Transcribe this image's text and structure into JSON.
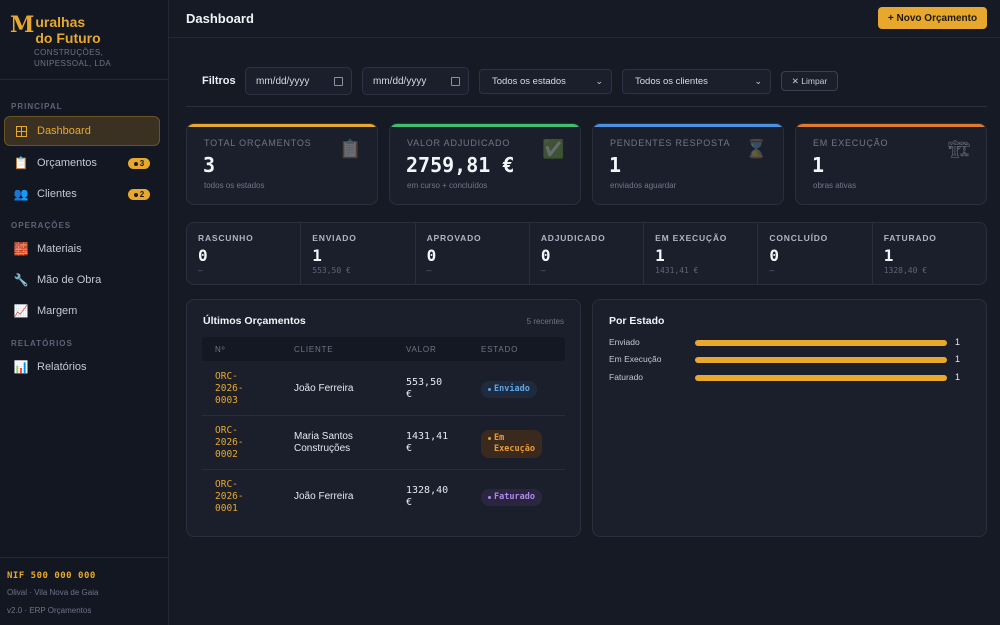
{
  "brand": {
    "initial": "M",
    "name_line1": "uralhas",
    "name_line2": "do Futuro",
    "sub_line1": "CONSTRUÇÕES,",
    "sub_line2": "UNIPESSOAL, LDA"
  },
  "sidebar": {
    "sections": {
      "principal": "PRINCIPAL",
      "operacoes": "OPERAÇÕES",
      "relatorios": "RELATÓRIOS"
    },
    "items": [
      {
        "label": "Dashboard",
        "icon": "grid-icon",
        "active": true
      },
      {
        "label": "Orçamentos",
        "icon": "clipboard-icon",
        "badge": "3"
      },
      {
        "label": "Clientes",
        "icon": "users-icon",
        "badge": "2"
      },
      {
        "label": "Materiais",
        "icon": "bricks-icon"
      },
      {
        "label": "Mão de Obra",
        "icon": "wrench-icon"
      },
      {
        "label": "Margem",
        "icon": "chart-up-icon"
      },
      {
        "label": "Relatórios",
        "icon": "bar-chart-icon"
      }
    ],
    "footer": {
      "nif": "NIF 500 000 000",
      "location": "Olival · Vila Nova de Gaia",
      "version": "v2.0 · ERP Orçamentos"
    }
  },
  "header": {
    "title": "Dashboard",
    "new_button": "+ Novo Orçamento"
  },
  "filters": {
    "label": "Filtros",
    "date_from_placeholder": "mm/dd/yyyy",
    "date_to_placeholder": "mm/dd/yyyy",
    "status_select": "Todos os estados",
    "client_select": "Todos os clientes",
    "clear_button": "✕ Limpar"
  },
  "kpis": [
    {
      "label": "TOTAL ORÇAMENTOS",
      "value": "3",
      "sub": "todos os estados",
      "color": "#e8a82e",
      "icon": "clipboard-icon"
    },
    {
      "label": "VALOR ADJUDICADO",
      "value": "2759,81 €",
      "sub": "em curso + concluídos",
      "color": "#3fbf6f",
      "icon": "check-box-icon"
    },
    {
      "label": "PENDENTES RESPOSTA",
      "value": "1",
      "sub": "enviados aguardar",
      "color": "#4a8fe0",
      "icon": "hourglass-icon"
    },
    {
      "label": "EM EXECUÇÃO",
      "value": "1",
      "sub": "obras ativas",
      "color": "#e07a2e",
      "icon": "crane-icon"
    }
  ],
  "status_strip": [
    {
      "label": "RASCUNHO",
      "value": "0",
      "sub": "—"
    },
    {
      "label": "ENVIADO",
      "value": "1",
      "sub": "553,50 €"
    },
    {
      "label": "APROVADO",
      "value": "0",
      "sub": "—"
    },
    {
      "label": "ADJUDICADO",
      "value": "0",
      "sub": "—"
    },
    {
      "label": "EM EXECUÇÃO",
      "value": "1",
      "sub": "1431,41 €"
    },
    {
      "label": "CONCLUÍDO",
      "value": "0",
      "sub": "—"
    },
    {
      "label": "FATURADO",
      "value": "1",
      "sub": "1328,40 €"
    }
  ],
  "recent": {
    "title": "Últimos Orçamentos",
    "meta": "5 recentes",
    "columns": [
      "Nº",
      "CLIENTE",
      "VALOR",
      "ESTADO"
    ],
    "rows": [
      {
        "num_l1": "ORC-",
        "num_l2": "2026-",
        "num_l3": "0003",
        "client_l1": "João Ferreira",
        "client_l2": "",
        "value_l1": "553,50",
        "value_l2": "€",
        "status": "Enviado",
        "status_l2": "",
        "kind": "enviado"
      },
      {
        "num_l1": "ORC-",
        "num_l2": "2026-",
        "num_l3": "0002",
        "client_l1": "Maria Santos",
        "client_l2": "Construções",
        "value_l1": "1431,41",
        "value_l2": "€",
        "status": "Em",
        "status_l2": "Execução",
        "kind": "execucao"
      },
      {
        "num_l1": "ORC-",
        "num_l2": "2026-",
        "num_l3": "0001",
        "client_l1": "João Ferreira",
        "client_l2": "",
        "value_l1": "1328,40",
        "value_l2": "€",
        "status": "Faturado",
        "status_l2": "",
        "kind": "faturado"
      }
    ]
  },
  "by_status": {
    "title": "Por Estado",
    "max": 1,
    "rows": [
      {
        "label": "Enviado",
        "count": 1
      },
      {
        "label": "Em Execução",
        "count": 1
      },
      {
        "label": "Faturado",
        "count": 1
      }
    ]
  }
}
